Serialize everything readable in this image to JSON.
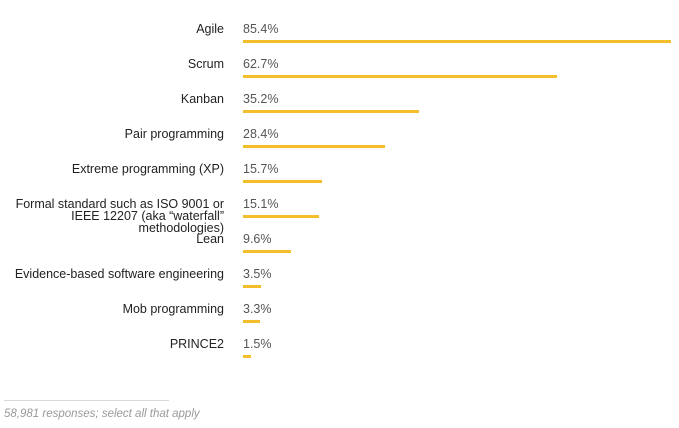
{
  "chart_data": {
    "type": "bar",
    "orientation": "horizontal",
    "categories": [
      "Agile",
      "Scrum",
      "Kanban",
      "Pair programming",
      "Extreme programming (XP)",
      "Formal standard such as ISO 9001 or IEEE 12207 (aka “waterfall” methodologies)",
      "Lean",
      "Evidence-based software engineering",
      "Mob programming",
      "PRINCE2"
    ],
    "values": [
      85.4,
      62.7,
      35.2,
      28.4,
      15.7,
      15.1,
      9.6,
      3.5,
      3.3,
      1.5
    ],
    "value_labels": [
      "85.4%",
      "62.7%",
      "35.2%",
      "28.4%",
      "15.7%",
      "15.1%",
      "9.6%",
      "3.5%",
      "3.3%",
      "1.5%"
    ],
    "xlim": [
      0,
      85.4
    ],
    "bar_color": "#f4bd2a",
    "grid": false,
    "legend": "none"
  },
  "footnote": "58,981 responses; select all that apply"
}
